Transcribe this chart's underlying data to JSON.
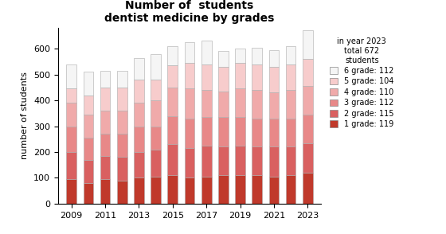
{
  "title": "Number of  students\ndentist medicine by grades",
  "ylabel": "number of students",
  "years": [
    2009,
    2010,
    2011,
    2012,
    2013,
    2014,
    2015,
    2016,
    2017,
    2018,
    2019,
    2020,
    2021,
    2022,
    2023
  ],
  "grade_labels": [
    "1 grade: 119",
    "2 grade: 115",
    "3 grade: 112",
    "4 grade: 110",
    "5 grade: 104",
    "6 grade: 112"
  ],
  "legend_title": "in year 2023\ntotal 672\nstudents",
  "colors": [
    "#c0392b",
    "#d96060",
    "#e88888",
    "#f0aaaa",
    "#f7cccc",
    "#f5f5f5"
  ],
  "data": {
    "grade1": [
      95,
      80,
      95,
      90,
      100,
      105,
      110,
      100,
      105,
      110,
      110,
      110,
      105,
      110,
      119
    ],
    "grade2": [
      105,
      90,
      90,
      90,
      100,
      105,
      120,
      115,
      120,
      110,
      115,
      110,
      115,
      110,
      115
    ],
    "grade3": [
      100,
      85,
      85,
      90,
      100,
      90,
      110,
      115,
      110,
      115,
      110,
      110,
      110,
      110,
      112
    ],
    "grade4": [
      90,
      90,
      90,
      90,
      90,
      100,
      110,
      115,
      105,
      100,
      110,
      110,
      100,
      110,
      110
    ],
    "grade5": [
      55,
      75,
      90,
      90,
      90,
      80,
      85,
      100,
      100,
      95,
      100,
      100,
      100,
      100,
      104
    ],
    "grade6": [
      95,
      90,
      65,
      65,
      85,
      100,
      75,
      80,
      90,
      60,
      55,
      65,
      65,
      70,
      112
    ]
  },
  "ylim": [
    0,
    680
  ],
  "yticks": [
    0,
    100,
    200,
    300,
    400,
    500,
    600
  ],
  "background_color": "#ffffff",
  "bar_edge_color": "#aaaaaa",
  "bar_width": 0.6
}
